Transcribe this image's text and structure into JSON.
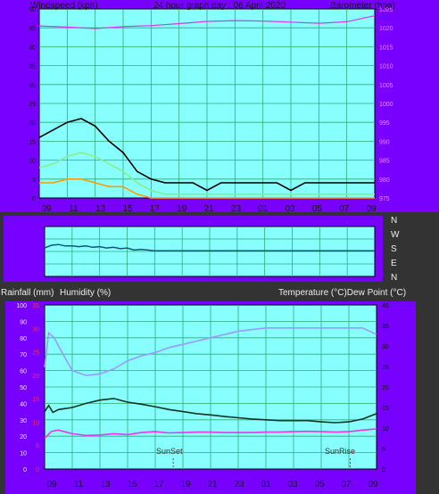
{
  "header": {
    "left": "Windspeed (kph)",
    "center": "24 hour graph day : 06 April 2020",
    "right": "Barometer (hpa)"
  },
  "lower_header": {
    "left_a": "Rainfall (mm)",
    "left_b": "Humidity (%)",
    "right": "Temperature (°C)Dew Point (°C)"
  },
  "colors": {
    "page_bg": "#333333",
    "axis_bg": "#7700ff",
    "plot_bg": "#88ffff",
    "grid": "#33aa77",
    "gust": "#000000",
    "avg_wind": "#88ee88",
    "low_wind": "#ff9900",
    "barometer": "#dd33ee",
    "wind_dir": "#115577",
    "temperature": "#113322",
    "humidity": "#9999ff",
    "dew_point": "#ee33ee"
  },
  "chart_data": [
    {
      "id": "wind_baro",
      "type": "line",
      "x_labels": [
        "09",
        "11",
        "13",
        "15",
        "17",
        "19",
        "21",
        "23",
        "01",
        "03",
        "05",
        "07",
        "09"
      ],
      "wind_axis": {
        "labels": [
          "0",
          "5",
          "10",
          "15",
          "20",
          "25",
          "30",
          "35",
          "40",
          "45",
          "50"
        ],
        "ylim": [
          0,
          50
        ]
      },
      "baro_axis": {
        "labels": [
          "975",
          "980",
          "985",
          "990",
          "995",
          "1000",
          "1005",
          "1010",
          "1015",
          "1020",
          "1025"
        ],
        "ylim": [
          975,
          1025
        ]
      },
      "series": [
        {
          "key": "gust",
          "x": [
            0,
            1,
            2,
            3,
            4,
            5,
            6,
            7,
            8,
            9,
            10,
            11,
            12,
            13,
            14,
            15,
            16,
            17,
            18,
            19,
            20,
            21,
            22,
            23,
            24
          ],
          "y": [
            16,
            18,
            20,
            21,
            19,
            15,
            12,
            7,
            5,
            4,
            4,
            4,
            2,
            4,
            4,
            4,
            4,
            4,
            2,
            4,
            4,
            4,
            4,
            4,
            4
          ]
        },
        {
          "key": "avg_wind",
          "x": [
            0,
            1,
            2,
            3,
            4,
            5,
            6,
            7,
            8,
            9,
            10,
            11,
            12,
            13,
            14,
            15,
            16,
            17,
            18,
            19,
            20,
            21,
            22,
            23,
            24
          ],
          "y": [
            8,
            9,
            11,
            12,
            11,
            9,
            7,
            4,
            2,
            1,
            1,
            1,
            1,
            1,
            1,
            1,
            1,
            1,
            1,
            1,
            1,
            1,
            1,
            1,
            1
          ]
        },
        {
          "key": "low_wind",
          "x": [
            0,
            1,
            2,
            3,
            4,
            5,
            6,
            7,
            8,
            9,
            10,
            11,
            12,
            13,
            14,
            15,
            16,
            17,
            18,
            19,
            20,
            21,
            22,
            23,
            24
          ],
          "y": [
            4,
            4,
            5,
            5,
            4,
            3,
            3,
            1,
            0,
            0,
            0,
            0,
            0,
            0,
            0,
            0,
            0,
            0,
            0,
            0,
            0,
            0,
            0,
            0,
            0
          ]
        },
        {
          "key": "barometer",
          "x": [
            0,
            2,
            4,
            6,
            8,
            10,
            12,
            14,
            16,
            18,
            20,
            22,
            24
          ],
          "y": [
            1020.5,
            1020.2,
            1019.8,
            1020.3,
            1020.6,
            1021.1,
            1021.7,
            1021.9,
            1021.8,
            1021.5,
            1021.2,
            1021.6,
            1023.2
          ]
        }
      ]
    },
    {
      "id": "wind_direction",
      "type": "line",
      "x_labels": [],
      "dir_axis": {
        "labels": [
          "N",
          "W",
          "S",
          "E",
          "N"
        ],
        "ylim": [
          0,
          360
        ]
      },
      "series": [
        {
          "key": "wind_dir",
          "x": [
            0,
            0.5,
            1,
            1.5,
            2,
            2.5,
            3,
            3.5,
            4,
            4.5,
            5,
            5.5,
            6,
            6.5,
            7,
            7.5,
            8,
            9,
            10,
            11,
            12,
            13,
            14,
            15,
            16,
            17,
            18,
            19,
            20,
            21,
            22,
            23,
            24
          ],
          "y": [
            205,
            225,
            230,
            220,
            220,
            215,
            220,
            210,
            215,
            205,
            210,
            200,
            205,
            190,
            195,
            190,
            185,
            185,
            185,
            185,
            185,
            185,
            185,
            185,
            185,
            185,
            185,
            185,
            185,
            185,
            185,
            185,
            185
          ]
        }
      ]
    },
    {
      "id": "temp_hum",
      "type": "line",
      "x_labels": [
        "09",
        "11",
        "13",
        "15",
        "17",
        "19",
        "21",
        "23",
        "01",
        "03",
        "05",
        "07",
        "09"
      ],
      "humidity_axis": {
        "labels": [
          "0",
          "10",
          "20",
          "30",
          "40",
          "50",
          "60",
          "70",
          "80",
          "90",
          "100"
        ],
        "ylim": [
          0,
          100
        ]
      },
      "rain_axis": {
        "labels": [
          "0",
          "5",
          "10",
          "15",
          "20",
          "25",
          "30",
          "35"
        ],
        "ylim": [
          0,
          35
        ]
      },
      "temp_axis": {
        "labels": [
          "0",
          "5",
          "10",
          "15",
          "20",
          "25",
          "30",
          "35",
          "40"
        ],
        "ylim": [
          0,
          40
        ]
      },
      "annotations": [
        {
          "label": "SunSet",
          "x": 9.3
        },
        {
          "label": "SunRise",
          "x": 22.1
        }
      ],
      "series": [
        {
          "key": "temperature",
          "x": [
            0,
            0.3,
            0.6,
            1,
            2,
            3,
            4,
            5,
            6,
            7,
            8,
            9,
            10,
            11,
            12,
            13,
            14,
            15,
            16,
            17,
            18,
            19,
            20,
            21,
            22,
            23,
            24
          ],
          "y": [
            14,
            15.5,
            13.8,
            14.5,
            15,
            16,
            16.8,
            17.2,
            16.3,
            15.8,
            15.2,
            14.5,
            14,
            13.5,
            13.2,
            12.8,
            12.5,
            12.2,
            12,
            11.8,
            11.8,
            11.8,
            11.5,
            11.3,
            11.5,
            12.2,
            13.5
          ]
        },
        {
          "key": "humidity",
          "x": [
            0,
            0.3,
            0.7,
            1,
            2,
            3,
            4,
            5,
            6,
            7,
            8,
            9,
            10,
            11,
            12,
            13,
            14,
            15,
            16,
            17,
            18,
            19,
            20,
            21,
            22,
            23,
            24
          ],
          "y": [
            62,
            83,
            80,
            75,
            60,
            57,
            58,
            61,
            66,
            69,
            71,
            74,
            76,
            78,
            80,
            82,
            84,
            85,
            86,
            86,
            86,
            86,
            86,
            86,
            86,
            86,
            82
          ]
        },
        {
          "key": "dew_point",
          "x": [
            0,
            0.5,
            1,
            2,
            3,
            4,
            5,
            6,
            7,
            8,
            9,
            10,
            11,
            12,
            13,
            14,
            15,
            16,
            17,
            18,
            19,
            20,
            21,
            22,
            23,
            24
          ],
          "y": [
            7.5,
            9.2,
            9.5,
            8.6,
            8.2,
            8.3,
            8.6,
            8.4,
            8.9,
            9.1,
            8.8,
            8.9,
            9.0,
            9.0,
            8.9,
            8.9,
            8.9,
            9.0,
            9.0,
            9.1,
            9.2,
            9.1,
            9.0,
            9.1,
            9.5,
            9.8
          ]
        }
      ]
    }
  ]
}
